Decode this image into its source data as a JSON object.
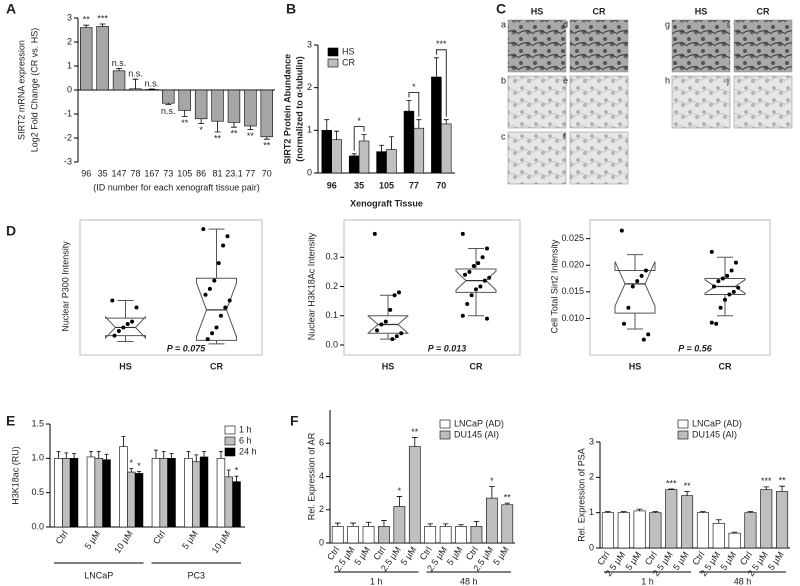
{
  "chart_data": [
    {
      "type": "bar",
      "panel": "A",
      "ylabel": [
        "SIRT2 mRNA expression",
        "Log2 Fold Change (CR vs. HS)"
      ],
      "xlabel": "(ID number for each xenograft tissue pair)",
      "categories": [
        "96",
        "35",
        "147",
        "78",
        "167",
        "73",
        "105",
        "86",
        "81",
        "23.1",
        "77",
        "70"
      ],
      "values": [
        2.6,
        2.65,
        0.8,
        0.05,
        0.02,
        -0.55,
        -0.85,
        -1.2,
        -1.3,
        -1.35,
        -1.5,
        -1.95
      ],
      "errors": [
        0.1,
        0.1,
        0.1,
        0.4,
        0.02,
        0.05,
        0.25,
        0.2,
        0.45,
        0.2,
        0.15,
        0.1
      ],
      "annotations": [
        "**",
        "***",
        "n.s.",
        "n.s.",
        "n.s.",
        "n.s.",
        "**",
        "*",
        "**",
        "**",
        "**",
        "**"
      ],
      "color": "#a6a6a6",
      "ylim": [
        -3,
        3
      ],
      "yticks": [
        -3,
        -2,
        -1,
        0,
        1,
        2,
        3
      ]
    },
    {
      "type": "bar",
      "panel": "B",
      "ylabel": [
        "SIRT2 Protein Abundance",
        "(normalized to α-tubulin)"
      ],
      "xlabel": "Xenograft Tissue",
      "categories": [
        "96",
        "35",
        "105",
        "77",
        "70"
      ],
      "series": [
        {
          "name": "HS",
          "color": "#000000",
          "values": [
            1.0,
            0.4,
            0.5,
            1.45,
            2.25
          ],
          "errors": [
            0.25,
            0.05,
            0.15,
            0.25,
            0.45
          ]
        },
        {
          "name": "CR",
          "color": "#bfbfbf",
          "values": [
            0.78,
            0.75,
            0.55,
            1.05,
            1.15
          ],
          "errors": [
            0.2,
            0.15,
            0.3,
            0.2,
            0.1
          ]
        }
      ],
      "annotations": [
        null,
        "*",
        null,
        "*",
        "***"
      ],
      "ylim": [
        0,
        3
      ],
      "yticks": [
        0,
        1,
        2,
        3
      ]
    },
    {
      "type": "box",
      "panel": "D",
      "ylabel": "Nuclear P300 Intensity",
      "categories": [
        "HS",
        "CR"
      ],
      "boxes": [
        {
          "min": 0.03,
          "q1": 0.08,
          "median": 0.15,
          "q3": 0.23,
          "max": 0.38,
          "points": [
            0.38,
            0.32,
            0.2,
            0.18,
            0.15,
            0.12,
            0.08
          ]
        },
        {
          "min": 0.01,
          "q1": 0.04,
          "median": 0.3,
          "q3": 0.57,
          "max": 0.99,
          "points": [
            0.99,
            0.93,
            0.85,
            0.7,
            0.55,
            0.48,
            0.43,
            0.38,
            0.32,
            0.25,
            0.15,
            0.1,
            0.05
          ]
        }
      ],
      "annotation": "P = 0.075",
      "ylim": [
        0,
        1
      ]
    },
    {
      "type": "box",
      "ylabel": "Nuclear H3K18Ac Intensity",
      "categories": [
        "HS",
        "CR"
      ],
      "boxes": [
        {
          "min": 0.02,
          "q1": 0.04,
          "median": 0.07,
          "q3": 0.1,
          "max": 0.17,
          "points": [
            0.38,
            0.18,
            0.17,
            0.12,
            0.08,
            0.07,
            0.05,
            0.04,
            0.03,
            0.02
          ]
        },
        {
          "min": 0.1,
          "q1": 0.18,
          "median": 0.22,
          "q3": 0.26,
          "max": 0.33,
          "points": [
            0.38,
            0.33,
            0.3,
            0.28,
            0.27,
            0.25,
            0.24,
            0.23,
            0.22,
            0.2,
            0.19,
            0.17,
            0.14,
            0.1,
            0.09
          ]
        }
      ],
      "annotation": "P = 0.013",
      "ylim": [
        0,
        0.4
      ],
      "yticks": [
        {
          "value": 0,
          "label": "0.0"
        },
        0.1,
        0.2,
        0.3
      ]
    },
    {
      "type": "box",
      "ylabel": "Cell Total Sirt2 Intensity",
      "categories": [
        "HS",
        "CR"
      ],
      "boxes": [
        {
          "min": 0.008,
          "q1": 0.011,
          "median": 0.0165,
          "q3": 0.019,
          "max": 0.022,
          "points": [
            0.0265,
            0.019,
            0.018,
            0.017,
            0.016,
            0.012,
            0.009,
            0.007,
            0.006
          ]
        },
        {
          "min": 0.0105,
          "q1": 0.0145,
          "median": 0.016,
          "q3": 0.0175,
          "max": 0.0215,
          "points": [
            0.0225,
            0.0205,
            0.019,
            0.018,
            0.0175,
            0.017,
            0.016,
            0.0158,
            0.015,
            0.0145,
            0.0135,
            0.012,
            0.009,
            0.0092
          ]
        }
      ],
      "annotation": "P = 0.56",
      "ylim": [
        0.005,
        0.027
      ],
      "yticks": [
        {
          "value": 0.01,
          "label": "0.010"
        },
        0.015,
        {
          "value": 0.02,
          "label": "0.020"
        },
        0.025
      ]
    },
    {
      "type": "bar",
      "panel": "E",
      "ylabel": "H3K18ac (RU)",
      "categories": [
        "Ctrl",
        "5 µM",
        "10 µM",
        "Ctrl",
        "5 µM",
        "10 µM"
      ],
      "groups": [
        "LNCaP",
        "PC3"
      ],
      "series": [
        {
          "name": "1 h",
          "color": "#ffffff",
          "values": [
            1.0,
            1.02,
            1.17,
            1.0,
            1.0,
            1.0
          ],
          "errors": [
            0.1,
            0.08,
            0.15,
            0.12,
            0.1,
            0.1
          ]
        },
        {
          "name": "6 h",
          "color": "#bfbfbf",
          "values": [
            1.0,
            1.0,
            0.8,
            1.0,
            0.95,
            0.73
          ],
          "errors": [
            0.08,
            0.1,
            0.05,
            0.1,
            0.1,
            0.1
          ],
          "annotations": [
            null,
            null,
            "*",
            null,
            null,
            null
          ]
        },
        {
          "name": "24 h",
          "color": "#000000",
          "values": [
            1.0,
            0.98,
            0.78,
            1.0,
            1.02,
            0.66
          ],
          "errors": [
            0.07,
            0.08,
            0.03,
            0.07,
            0.08,
            0.08
          ],
          "annotations": [
            null,
            null,
            "*",
            null,
            null,
            "*"
          ]
        }
      ],
      "ylim": [
        0,
        1.5
      ],
      "yticks": [
        {
          "value": 0,
          "label": "0.0"
        },
        0.5,
        {
          "value": 1,
          "label": "1.0"
        },
        1.5
      ]
    },
    {
      "type": "bar",
      "panel": "F",
      "ylabel": "Rel. Expression of AR",
      "categories": [
        "Ctrl",
        "2.5 µM",
        "5 µM",
        "Ctrl",
        "2.5 µM",
        "5 µM",
        "Ctrl",
        "2.5 µM",
        "5 µM",
        "Ctrl",
        "2.5 µM",
        "5 µM"
      ],
      "groups": [
        "1 h",
        "48 h"
      ],
      "series": [
        {
          "name": "LNCaP (AD)",
          "color": "#ffffff",
          "values": [
            1.0,
            1.0,
            1.0,
            null,
            null,
            null,
            1.0,
            1.0,
            1.0,
            null,
            null,
            null
          ],
          "errors": [
            0.2,
            0.2,
            0.25,
            null,
            null,
            null,
            0.15,
            0.15,
            0.1,
            null,
            null,
            null
          ]
        },
        {
          "name": "DU145 (AI)",
          "color": "#bfbfbf",
          "values": [
            null,
            null,
            null,
            1.0,
            2.2,
            5.8,
            null,
            null,
            null,
            1.0,
            2.7,
            2.3
          ],
          "errors": [
            null,
            null,
            null,
            0.35,
            0.6,
            0.55,
            null,
            null,
            null,
            0.3,
            0.7,
            0.1
          ],
          "annotations": [
            null,
            null,
            null,
            null,
            "*",
            "**",
            null,
            null,
            null,
            null,
            "*",
            "**"
          ]
        }
      ],
      "ylim": [
        0,
        8
      ],
      "yticks": [
        0,
        2,
        4,
        6
      ]
    },
    {
      "type": "bar",
      "ylabel": "Rel. Expression of PSA",
      "categories": [
        "Ctrl",
        "2.5 µM",
        "5 µM",
        "Ctrl",
        "2.5 µM",
        "5 µM",
        "Ctrl",
        "2.5 µM",
        "5 µM",
        "Ctrl",
        "2.5 µM",
        "5 µM"
      ],
      "groups": [
        "1 h",
        "48 h"
      ],
      "series": [
        {
          "name": "LNCaP (AD)",
          "color": "#ffffff",
          "values": [
            1.0,
            1.0,
            1.05,
            null,
            null,
            null,
            1.0,
            0.7,
            0.42,
            null,
            null,
            null
          ],
          "errors": [
            0.03,
            0.03,
            0.05,
            null,
            null,
            null,
            0.03,
            0.1,
            0.03,
            null,
            null,
            null
          ]
        },
        {
          "name": "DU145 (AI)",
          "color": "#bfbfbf",
          "values": [
            null,
            null,
            null,
            1.0,
            1.65,
            1.48,
            null,
            null,
            null,
            1.0,
            1.65,
            1.6
          ],
          "errors": [
            null,
            null,
            null,
            0.03,
            0.02,
            0.12,
            null,
            null,
            null,
            0.03,
            0.08,
            0.15
          ],
          "annotations": [
            null,
            null,
            null,
            null,
            "***",
            "**",
            null,
            null,
            null,
            null,
            "***",
            "**"
          ]
        }
      ],
      "ylim": [
        0,
        3
      ],
      "yticks": [
        0,
        1,
        2,
        3
      ]
    }
  ],
  "micrographs": {
    "panel": "C",
    "headers": [
      "HS",
      "CR",
      "HS",
      "CR"
    ],
    "labels": [
      "a",
      "b",
      "c",
      "d",
      "e",
      "f",
      "g",
      "h",
      "i",
      "j"
    ]
  }
}
